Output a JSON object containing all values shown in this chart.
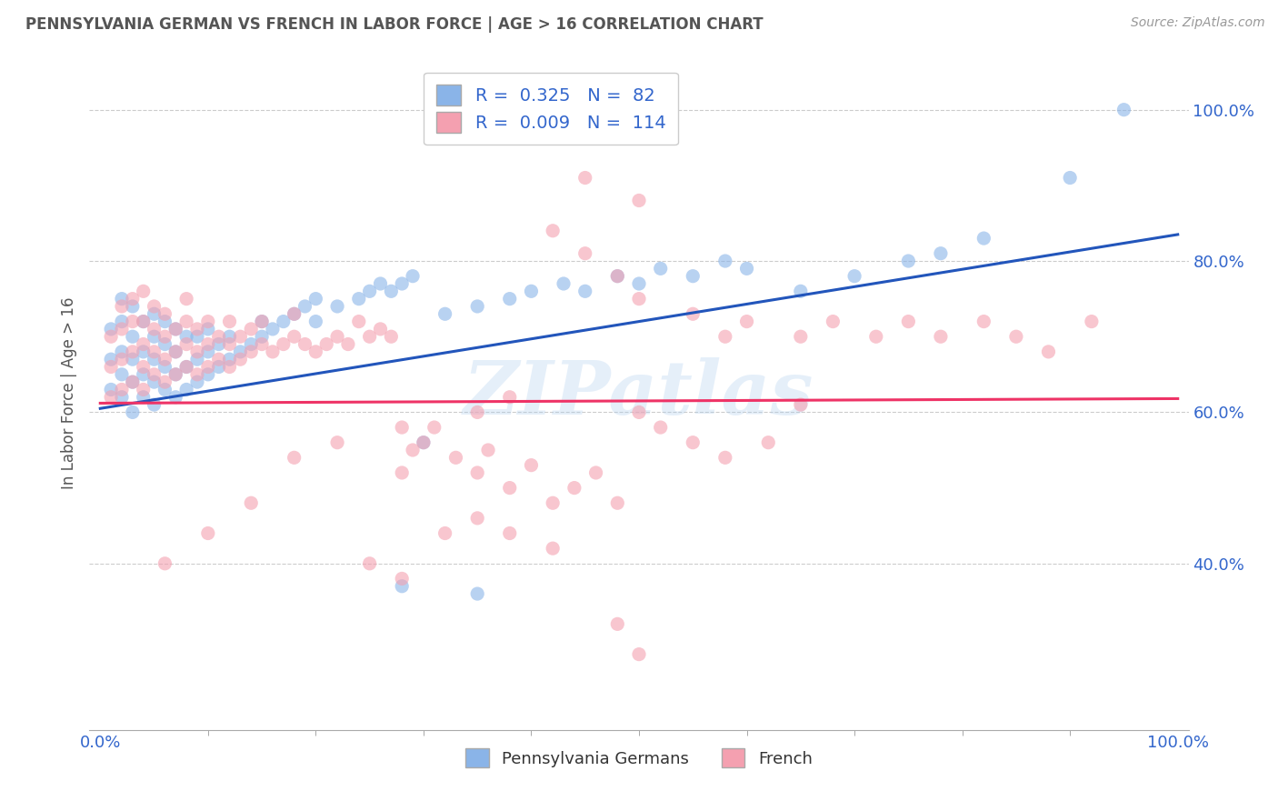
{
  "title": "PENNSYLVANIA GERMAN VS FRENCH IN LABOR FORCE | AGE > 16 CORRELATION CHART",
  "source": "Source: ZipAtlas.com",
  "ylabel": "In Labor Force | Age > 16",
  "xlim": [
    -0.01,
    1.01
  ],
  "ylim": [
    0.18,
    1.07
  ],
  "xtick_positions": [
    0.0,
    1.0
  ],
  "xticklabels": [
    "0.0%",
    "100.0%"
  ],
  "ytick_positions": [
    0.4,
    0.6,
    0.8,
    1.0
  ],
  "yticklabels": [
    "40.0%",
    "60.0%",
    "80.0%",
    "100.0%"
  ],
  "blue_color": "#8AB4E8",
  "pink_color": "#F4A0B0",
  "blue_line_color": "#2255BB",
  "pink_line_color": "#EE3366",
  "R_blue": 0.325,
  "N_blue": 82,
  "R_pink": 0.009,
  "N_pink": 114,
  "legend_label_blue": "Pennsylvania Germans",
  "legend_label_pink": "French",
  "watermark": "ZIPatlas",
  "background_color": "#FFFFFF",
  "grid_color": "#CCCCCC",
  "blue_trend_start": 0.605,
  "blue_trend_end": 0.835,
  "pink_trend_start": 0.612,
  "pink_trend_end": 0.618,
  "blue_scatter_x": [
    0.01,
    0.01,
    0.01,
    0.02,
    0.02,
    0.02,
    0.02,
    0.02,
    0.03,
    0.03,
    0.03,
    0.03,
    0.03,
    0.04,
    0.04,
    0.04,
    0.04,
    0.05,
    0.05,
    0.05,
    0.05,
    0.05,
    0.06,
    0.06,
    0.06,
    0.06,
    0.07,
    0.07,
    0.07,
    0.07,
    0.08,
    0.08,
    0.08,
    0.09,
    0.09,
    0.09,
    0.1,
    0.1,
    0.1,
    0.11,
    0.11,
    0.12,
    0.12,
    0.13,
    0.14,
    0.15,
    0.15,
    0.16,
    0.17,
    0.18,
    0.19,
    0.2,
    0.2,
    0.22,
    0.24,
    0.25,
    0.26,
    0.27,
    0.28,
    0.29,
    0.3,
    0.32,
    0.35,
    0.38,
    0.4,
    0.43,
    0.45,
    0.48,
    0.5,
    0.52,
    0.55,
    0.58,
    0.6,
    0.65,
    0.7,
    0.75,
    0.78,
    0.82,
    0.9,
    0.95,
    0.28,
    0.35
  ],
  "blue_scatter_y": [
    0.63,
    0.67,
    0.71,
    0.62,
    0.65,
    0.68,
    0.72,
    0.75,
    0.6,
    0.64,
    0.67,
    0.7,
    0.74,
    0.62,
    0.65,
    0.68,
    0.72,
    0.61,
    0.64,
    0.67,
    0.7,
    0.73,
    0.63,
    0.66,
    0.69,
    0.72,
    0.62,
    0.65,
    0.68,
    0.71,
    0.63,
    0.66,
    0.7,
    0.64,
    0.67,
    0.7,
    0.65,
    0.68,
    0.71,
    0.66,
    0.69,
    0.67,
    0.7,
    0.68,
    0.69,
    0.7,
    0.72,
    0.71,
    0.72,
    0.73,
    0.74,
    0.72,
    0.75,
    0.74,
    0.75,
    0.76,
    0.77,
    0.76,
    0.77,
    0.78,
    0.56,
    0.73,
    0.74,
    0.75,
    0.76,
    0.77,
    0.76,
    0.78,
    0.77,
    0.79,
    0.78,
    0.8,
    0.79,
    0.76,
    0.78,
    0.8,
    0.81,
    0.83,
    0.91,
    1.0,
    0.37,
    0.36
  ],
  "pink_scatter_x": [
    0.01,
    0.01,
    0.01,
    0.02,
    0.02,
    0.02,
    0.02,
    0.03,
    0.03,
    0.03,
    0.03,
    0.04,
    0.04,
    0.04,
    0.04,
    0.04,
    0.05,
    0.05,
    0.05,
    0.05,
    0.06,
    0.06,
    0.06,
    0.06,
    0.07,
    0.07,
    0.07,
    0.08,
    0.08,
    0.08,
    0.08,
    0.09,
    0.09,
    0.09,
    0.1,
    0.1,
    0.1,
    0.11,
    0.11,
    0.12,
    0.12,
    0.12,
    0.13,
    0.13,
    0.14,
    0.14,
    0.15,
    0.15,
    0.16,
    0.17,
    0.18,
    0.18,
    0.19,
    0.2,
    0.21,
    0.22,
    0.23,
    0.24,
    0.25,
    0.26,
    0.27,
    0.28,
    0.29,
    0.3,
    0.31,
    0.33,
    0.35,
    0.36,
    0.38,
    0.4,
    0.42,
    0.44,
    0.46,
    0.48,
    0.5,
    0.52,
    0.55,
    0.58,
    0.62,
    0.65,
    0.42,
    0.45,
    0.48,
    0.5,
    0.55,
    0.58,
    0.6,
    0.65,
    0.68,
    0.72,
    0.75,
    0.78,
    0.82,
    0.85,
    0.88,
    0.92,
    0.32,
    0.35,
    0.38,
    0.42,
    0.25,
    0.28,
    0.48,
    0.5,
    0.38,
    0.35,
    0.28,
    0.22,
    0.18,
    0.14,
    0.1,
    0.06,
    0.45,
    0.5
  ],
  "pink_scatter_y": [
    0.62,
    0.66,
    0.7,
    0.63,
    0.67,
    0.71,
    0.74,
    0.64,
    0.68,
    0.72,
    0.75,
    0.63,
    0.66,
    0.69,
    0.72,
    0.76,
    0.65,
    0.68,
    0.71,
    0.74,
    0.64,
    0.67,
    0.7,
    0.73,
    0.65,
    0.68,
    0.71,
    0.66,
    0.69,
    0.72,
    0.75,
    0.65,
    0.68,
    0.71,
    0.66,
    0.69,
    0.72,
    0.67,
    0.7,
    0.66,
    0.69,
    0.72,
    0.67,
    0.7,
    0.68,
    0.71,
    0.69,
    0.72,
    0.68,
    0.69,
    0.7,
    0.73,
    0.69,
    0.68,
    0.69,
    0.7,
    0.69,
    0.72,
    0.7,
    0.71,
    0.7,
    0.52,
    0.55,
    0.56,
    0.58,
    0.54,
    0.52,
    0.55,
    0.5,
    0.53,
    0.48,
    0.5,
    0.52,
    0.48,
    0.6,
    0.58,
    0.56,
    0.54,
    0.56,
    0.61,
    0.84,
    0.81,
    0.78,
    0.75,
    0.73,
    0.7,
    0.72,
    0.7,
    0.72,
    0.7,
    0.72,
    0.7,
    0.72,
    0.7,
    0.68,
    0.72,
    0.44,
    0.46,
    0.44,
    0.42,
    0.4,
    0.38,
    0.32,
    0.28,
    0.62,
    0.6,
    0.58,
    0.56,
    0.54,
    0.48,
    0.44,
    0.4,
    0.91,
    0.88
  ]
}
